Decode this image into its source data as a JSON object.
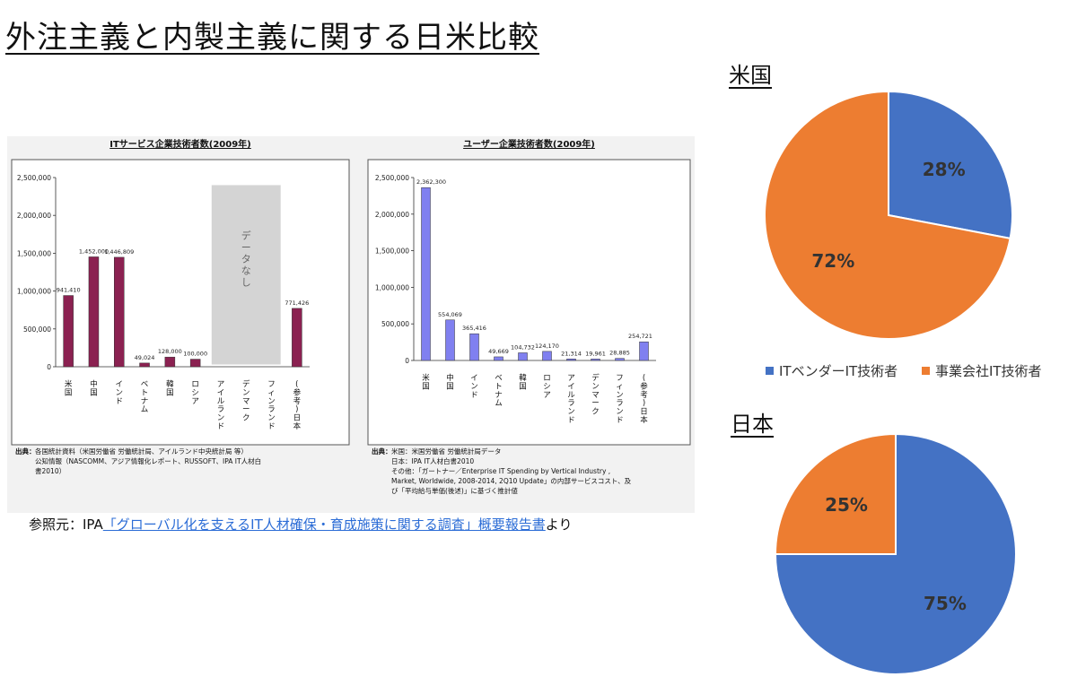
{
  "page": {
    "title": "外注主義と内製主義に関する日米比較",
    "source_prefix": "参照元：IPA",
    "source_link": "「グローバル化を支えるIT人材確保・育成施策に関する調査」概要報告書",
    "source_suffix": "より"
  },
  "colors": {
    "blue": "#4472c4",
    "orange": "#ed7d31",
    "maroon": "#8b2151",
    "periwinkle": "#8080f0",
    "nodata": "#d4d4d4"
  },
  "chart_data": [
    {
      "type": "bar",
      "title": "ITサービス企業技術者数(2009年)",
      "categories": [
        "米国",
        "中国",
        "インド",
        "ベトナム",
        "韓国",
        "ロシア",
        "アイルランド",
        "デンマーク",
        "フィンランド",
        "(参考)日本"
      ],
      "values": [
        941410,
        1452000,
        1446809,
        49024,
        128000,
        100000,
        null,
        null,
        null,
        771426
      ],
      "value_labels": [
        "941,410",
        "1,452,000",
        "1,446,809",
        "49,024",
        "128,000",
        "100,000",
        "",
        "",
        "",
        "771,426"
      ],
      "yticks": [
        "0",
        "500,000",
        "1,000,000",
        "1,500,000",
        "2,000,000",
        "2,500,000"
      ],
      "ylim": [
        0,
        2500000
      ],
      "no_data_label": "データなし",
      "footnote_label": "出典：",
      "footnote": [
        "各国統計資料（米国労働省 労働統計局、アイルランド中央統計局 等）",
        "公知情報（NASCOMM、アジア情報化レポート、RUSSOFT、IPA IT人材白",
        "書2010）"
      ]
    },
    {
      "type": "bar",
      "title": "ユーザー企業技術者数(2009年)",
      "categories": [
        "米国",
        "中国",
        "インド",
        "ベトナム",
        "韓国",
        "ロシア",
        "アイルランド",
        "デンマーク",
        "フィンランド",
        "(参考)日本"
      ],
      "values": [
        2362300,
        554069,
        365416,
        49669,
        104732,
        124170,
        21314,
        19961,
        28885,
        254721
      ],
      "value_labels": [
        "2,362,300",
        "554,069",
        "365,416",
        "49,669",
        "104,732",
        "124,170",
        "21,314",
        "19,961",
        "28,885",
        "254,721"
      ],
      "yticks": [
        "0",
        "500,000",
        "1,000,000",
        "1,500,000",
        "2,000,000",
        "2,500,000"
      ],
      "ylim": [
        0,
        2500000
      ],
      "footnote_label": "出典：",
      "footnote": [
        "米国：米国労働省 労働統計局データ",
        "日本：IPA IT人材白書2010",
        "その他：「ガートナー／Enterprise IT Spending by Vertical Industry ,",
        "Market, Worldwide, 2008-2014, 2Q10 Update」の内部サービスコスト、及",
        "び「平均給与単価(後述)」に基づく推計値"
      ]
    },
    {
      "type": "pie",
      "title": "米国",
      "labels": [
        "ITベンダーIT技術者",
        "事業会社IT技術者"
      ],
      "values": [
        28,
        72
      ],
      "value_labels": [
        "28%",
        "72%"
      ]
    },
    {
      "type": "pie",
      "title": "日本",
      "labels": [
        "ITベンダーIT技術者",
        "事業会社IT技術者"
      ],
      "values": [
        75,
        25
      ],
      "value_labels": [
        "75%",
        "25%"
      ]
    }
  ]
}
